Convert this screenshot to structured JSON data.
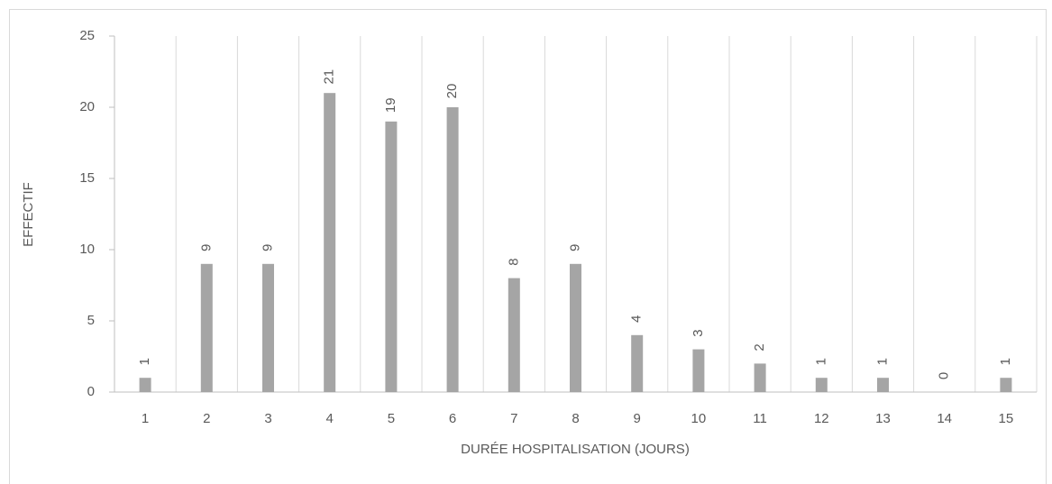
{
  "chart_data": {
    "type": "bar",
    "x_label": "DURÉE HOSPITALISATION (JOURS)",
    "y_label": "EFFECTIF",
    "categories": [
      "1",
      "2",
      "3",
      "4",
      "5",
      "6",
      "7",
      "8",
      "9",
      "10",
      "11",
      "12",
      "13",
      "14",
      "15"
    ],
    "values": [
      1,
      9,
      9,
      21,
      19,
      20,
      8,
      9,
      4,
      3,
      2,
      1,
      1,
      0,
      1
    ],
    "color": "#a5a5a5",
    "ylim": [
      0,
      25
    ],
    "yticks": [
      0,
      5,
      10,
      15,
      20,
      25
    ],
    "grid": true
  }
}
